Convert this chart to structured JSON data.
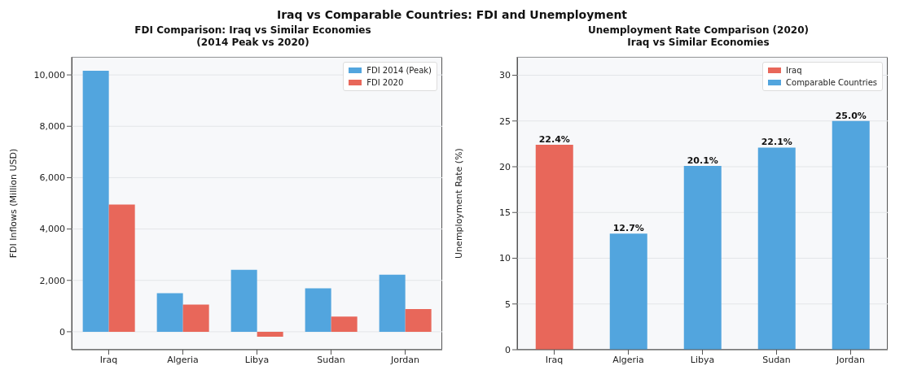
{
  "chart_data": [
    {
      "type": "bar",
      "title": "FDI Comparison: Iraq vs Similar Economies\n(2014 Peak vs 2020)",
      "annotations": [
        "Iraq vs Comparable Countries: FDI and Unemployment"
      ],
      "ylabel": "FDI Inflows (Million USD)",
      "categories": [
        "Iraq",
        "Algeria",
        "Libya",
        "Sudan",
        "Jordan"
      ],
      "series": [
        {
          "name": "FDI 2014 (Peak)",
          "color": "#52a5de",
          "values": [
            10160,
            1500,
            2410,
            1690,
            2220
          ]
        },
        {
          "name": "FDI 2020",
          "color": "#e8675a",
          "values": [
            4950,
            1060,
            -190,
            590,
            880
          ]
        }
      ],
      "ylim": [
        -700,
        10700
      ],
      "yticks": [
        0,
        {
          "value": 2000,
          "label": "2,000"
        },
        {
          "value": 4000,
          "label": "4,000"
        },
        {
          "value": 6000,
          "label": "6,000"
        },
        {
          "value": 8000,
          "label": "8,000"
        },
        {
          "value": 10000,
          "label": "10,000"
        }
      ],
      "grid": "y",
      "legend": "top right"
    },
    {
      "type": "bar",
      "title": "Unemployment Rate Comparison (2020)\nIraq vs Similar Economies",
      "ylabel": "Unemployment Rate (%)",
      "categories": [
        "Iraq",
        "Algeria",
        "Libya",
        "Sudan",
        "Jordan"
      ],
      "stacked": true,
      "series": [
        {
          "name": "Iraq",
          "color": "#e8675a",
          "values": [
            22.4,
            null,
            null,
            null,
            null
          ],
          "value_labels": [
            "22.4%",
            null,
            null,
            null,
            null
          ]
        },
        {
          "name": "Comparable Countries",
          "color": "#52a5de",
          "values": [
            null,
            12.7,
            20.1,
            22.1,
            25.0
          ],
          "value_labels": [
            null,
            "12.7%",
            "20.1%",
            "22.1%",
            "25.0%"
          ]
        }
      ],
      "ylim": [
        0,
        32
      ],
      "yticks": [
        0,
        5,
        10,
        15,
        20,
        25,
        30
      ],
      "grid": "y",
      "legend": "top right"
    }
  ]
}
